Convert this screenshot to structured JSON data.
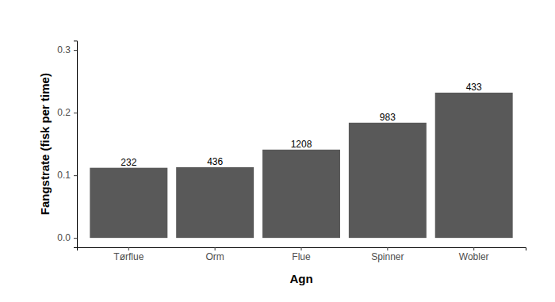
{
  "chart_data": {
    "type": "bar",
    "x_label": "Agn",
    "y_label": "Fangstrate (fisk per time)",
    "categories": [
      "Tørflue",
      "Orm",
      "Flue",
      "Spinner",
      "Wobler"
    ],
    "values": [
      0.112,
      0.113,
      0.141,
      0.184,
      0.232
    ],
    "counts": [
      232,
      436,
      1208,
      983,
      433
    ],
    "color": "#595959",
    "ylim": [
      -0.015,
      0.315
    ],
    "yticks": [
      {
        "value": 0,
        "label": "0.0"
      },
      0.1,
      0.2,
      0.3
    ],
    "grid": false
  }
}
